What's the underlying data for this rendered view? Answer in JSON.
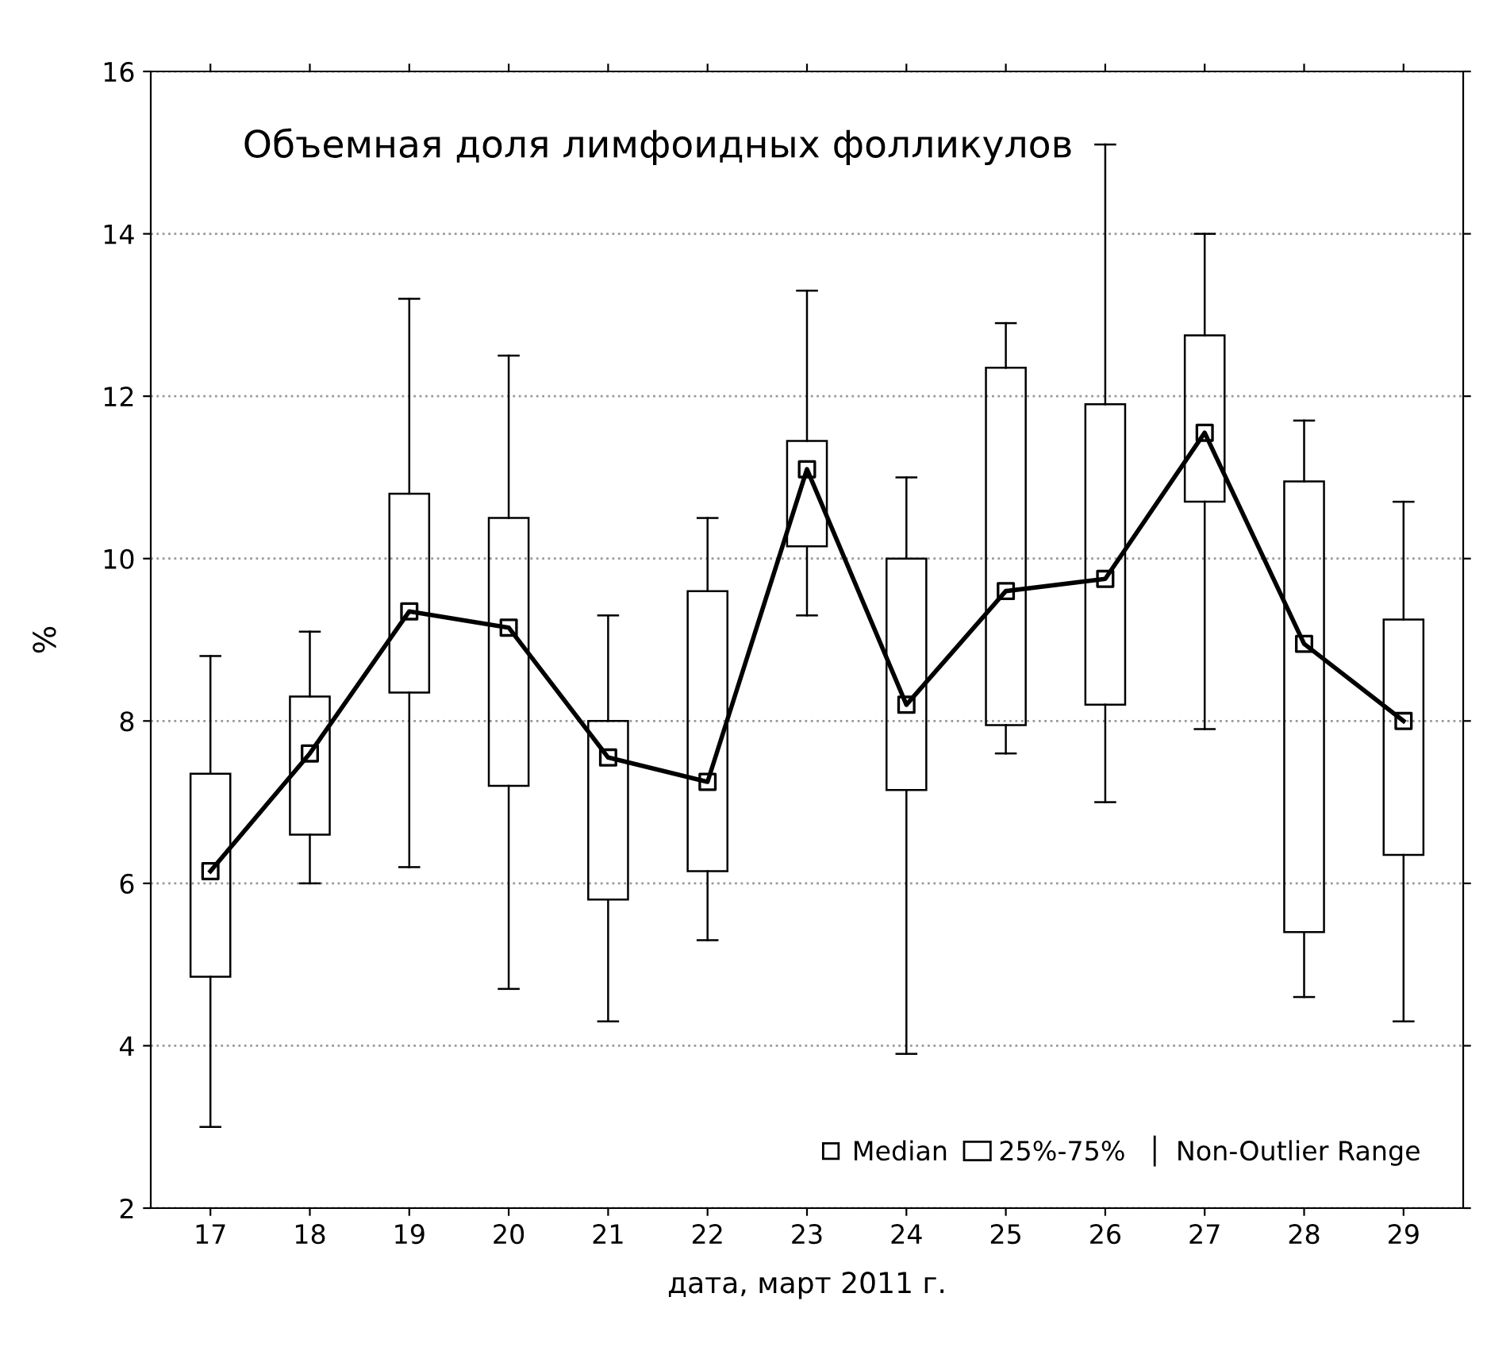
{
  "chart_data": {
    "type": "box",
    "title": "Объемная доля лимфоидных фолликулов",
    "xlabel": "дата, март 2011 г.",
    "ylabel": "%",
    "categories": [
      "17",
      "18",
      "19",
      "20",
      "21",
      "22",
      "23",
      "24",
      "25",
      "26",
      "27",
      "28",
      "29"
    ],
    "ylim": [
      2,
      16
    ],
    "yticks": [
      2,
      4,
      6,
      8,
      10,
      12,
      14,
      16
    ],
    "grid": "y",
    "legend": "bottom right",
    "series": [
      {
        "name": "25%-75%",
        "color": "#000000",
        "marker": "square",
        "boxes": [
          {
            "low": 3.0,
            "q1": 4.85,
            "median": 6.15,
            "q3": 7.35,
            "high": 8.8
          },
          {
            "low": 6.0,
            "q1": 6.6,
            "median": 7.6,
            "q3": 8.3,
            "high": 9.1
          },
          {
            "low": 6.2,
            "q1": 8.35,
            "median": 9.35,
            "q3": 10.8,
            "high": 13.2
          },
          {
            "low": 4.7,
            "q1": 7.2,
            "median": 9.15,
            "q3": 10.5,
            "high": 12.5
          },
          {
            "low": 4.3,
            "q1": 5.8,
            "median": 7.55,
            "q3": 8.0,
            "high": 9.3
          },
          {
            "low": 5.3,
            "q1": 6.15,
            "median": 7.25,
            "q3": 9.6,
            "high": 10.5
          },
          {
            "low": 9.3,
            "q1": 10.15,
            "median": 11.1,
            "q3": 11.45,
            "high": 13.3
          },
          {
            "low": 3.9,
            "q1": 7.15,
            "median": 8.2,
            "q3": 10.0,
            "high": 11.0
          },
          {
            "low": 7.6,
            "q1": 7.95,
            "median": 9.6,
            "q3": 12.35,
            "high": 12.9
          },
          {
            "low": 7.0,
            "q1": 8.2,
            "median": 9.75,
            "q3": 11.9,
            "high": 15.1
          },
          {
            "low": 7.9,
            "q1": 10.7,
            "median": 11.55,
            "q3": 12.75,
            "high": 14.0
          },
          {
            "low": 4.6,
            "q1": 5.4,
            "median": 8.95,
            "q3": 10.95,
            "high": 11.7
          },
          {
            "low": 4.3,
            "q1": 6.35,
            "median": 8.0,
            "q3": 9.25,
            "high": 10.7
          }
        ]
      },
      {
        "type": "line",
        "color": "#000000",
        "values": [
          6.15,
          7.6,
          9.35,
          9.15,
          7.55,
          7.25,
          11.1,
          8.2,
          9.6,
          9.75,
          11.55,
          8.95,
          8.0
        ]
      }
    ],
    "annotations": [
      "Median",
      "Non-Outlier Range"
    ]
  }
}
